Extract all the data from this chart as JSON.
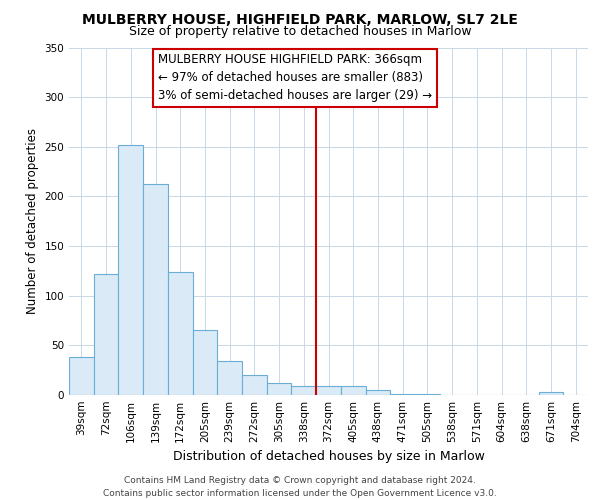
{
  "title": "MULBERRY HOUSE, HIGHFIELD PARK, MARLOW, SL7 2LE",
  "subtitle": "Size of property relative to detached houses in Marlow",
  "xlabel": "Distribution of detached houses by size in Marlow",
  "ylabel": "Number of detached properties",
  "bin_labels": [
    "39sqm",
    "72sqm",
    "106sqm",
    "139sqm",
    "172sqm",
    "205sqm",
    "239sqm",
    "272sqm",
    "305sqm",
    "338sqm",
    "372sqm",
    "405sqm",
    "438sqm",
    "471sqm",
    "505sqm",
    "538sqm",
    "571sqm",
    "604sqm",
    "638sqm",
    "671sqm",
    "704sqm"
  ],
  "bar_heights": [
    38,
    122,
    252,
    213,
    124,
    65,
    34,
    20,
    12,
    9,
    9,
    9,
    5,
    1,
    1,
    0,
    0,
    0,
    0,
    3,
    0
  ],
  "bar_color": "#daeaf7",
  "bar_edge_color": "#6aaed6",
  "vline_x": 9.5,
  "vline_color": "#cc0000",
  "annotation_text": "MULBERRY HOUSE HIGHFIELD PARK: 366sqm\n← 97% of detached houses are smaller (883)\n3% of semi-detached houses are larger (29) →",
  "annotation_box_color": "#ffffff",
  "annotation_box_edge_color": "#cc0000",
  "ylim": [
    0,
    350
  ],
  "yticks": [
    0,
    50,
    100,
    150,
    200,
    250,
    300,
    350
  ],
  "grid_color": "#c8d8e8",
  "footer_text": "Contains HM Land Registry data © Crown copyright and database right 2024.\nContains public sector information licensed under the Open Government Licence v3.0.",
  "title_fontsize": 10,
  "subtitle_fontsize": 9,
  "xlabel_fontsize": 9,
  "ylabel_fontsize": 8.5,
  "tick_fontsize": 7.5,
  "annotation_fontsize": 8.5,
  "footer_fontsize": 6.5
}
